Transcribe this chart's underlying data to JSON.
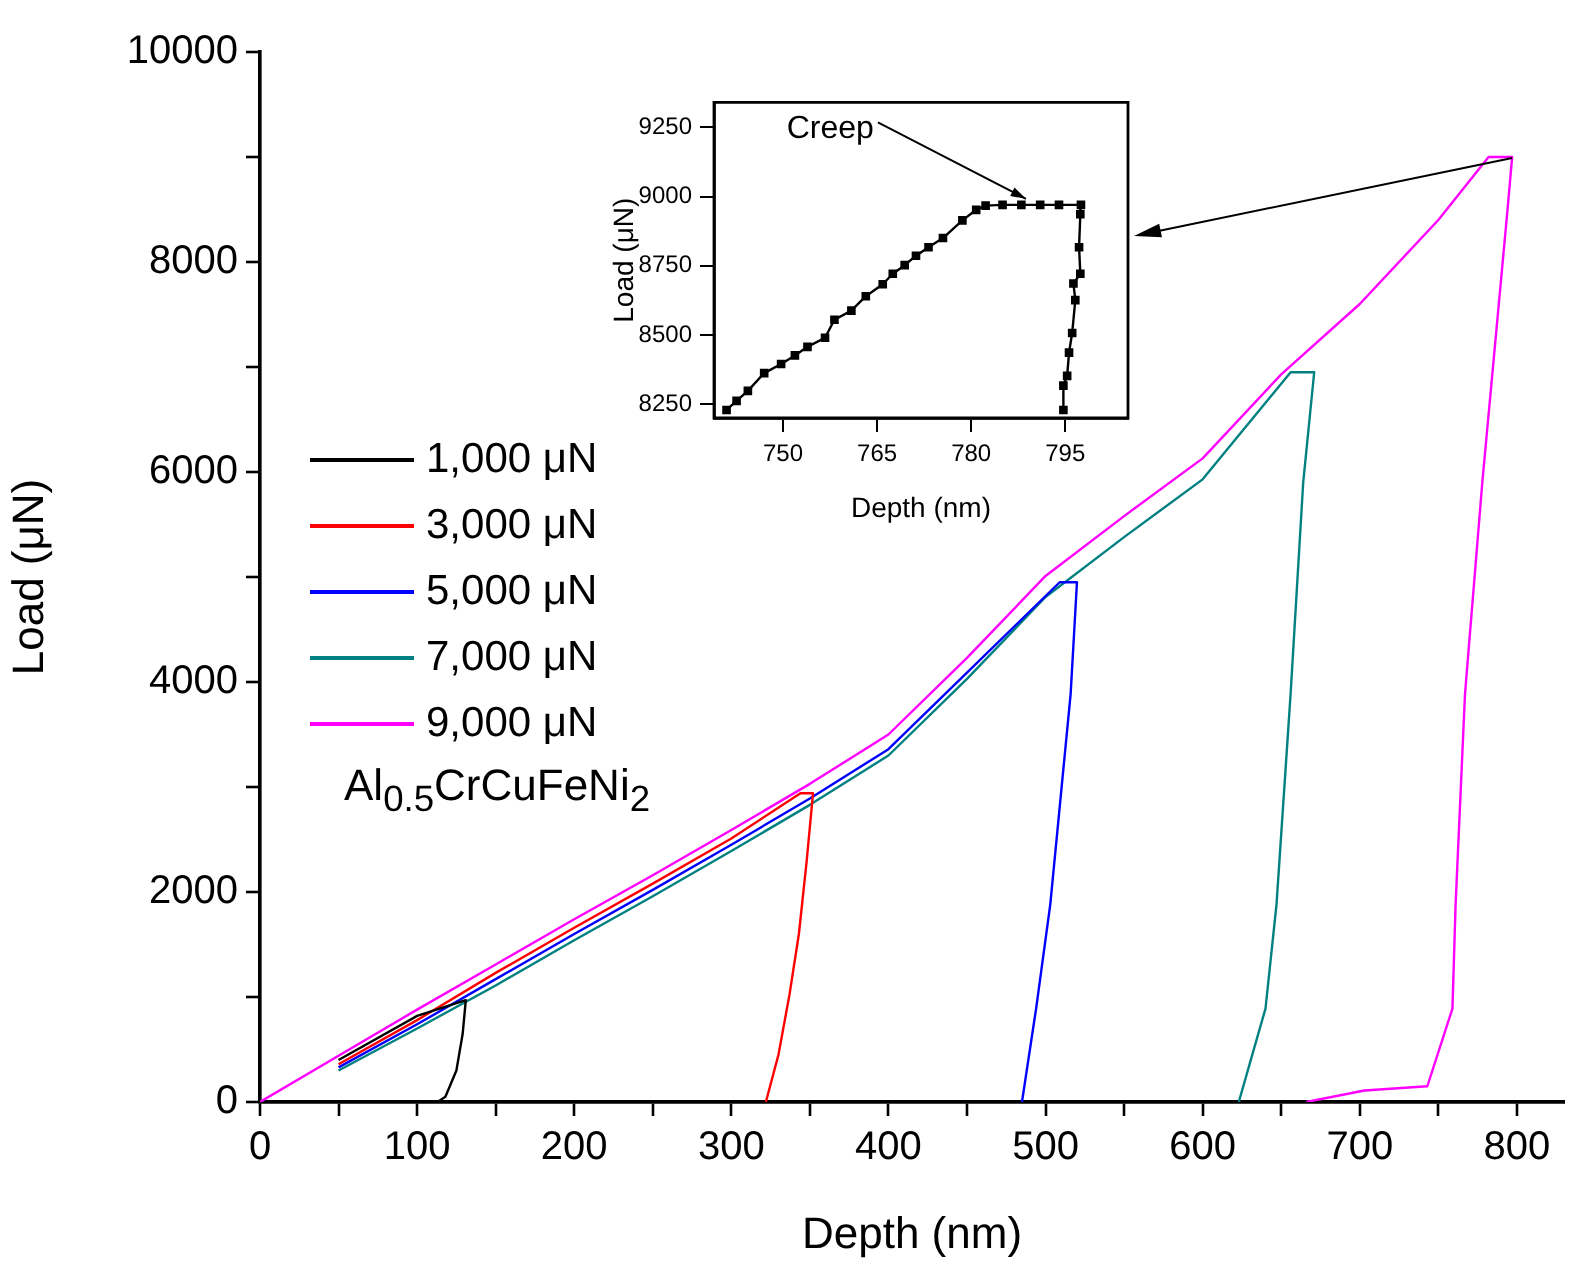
{
  "chart_data": [
    {
      "type": "line",
      "xlabel": "Depth (nm)",
      "ylabel": "Load (μN)",
      "xlim": [
        0,
        830
      ],
      "ylim": [
        0,
        10000
      ],
      "xticks": [
        0,
        {
          "value": 50,
          "label": null
        },
        100,
        {
          "value": 150,
          "label": null
        },
        200,
        {
          "value": 250,
          "label": null
        },
        300,
        {
          "value": 350,
          "label": null
        },
        400,
        {
          "value": 450,
          "label": null
        },
        500,
        {
          "value": 550,
          "label": null
        },
        600,
        {
          "value": 650,
          "label": null
        },
        700,
        {
          "value": 750,
          "label": null
        },
        800
      ],
      "yticks": [
        0,
        {
          "value": 1000,
          "label": null
        },
        2000,
        {
          "value": 3000,
          "label": null
        },
        4000,
        {
          "value": 5000,
          "label": null
        },
        6000,
        {
          "value": 7000,
          "label": null
        },
        8000,
        {
          "value": 9000,
          "label": null
        },
        10000
      ],
      "grid": false,
      "legend": "left",
      "marker": "none",
      "line_style": "solid",
      "annotations": [
        "Al$_{0.5}$CrCuFeNi$_{2}$"
      ],
      "series": [
        {
          "name": "1,000 μN",
          "color": "#000000",
          "x": [
            50,
            100,
            131,
            129,
            125,
            118,
            113
          ],
          "values": [
            400,
            820,
            970,
            650,
            300,
            50,
            0
          ]
        },
        {
          "name": "3,000 μN",
          "color": "#ff0000",
          "x": [
            50,
            100,
            150,
            200,
            250,
            300,
            344,
            352,
            348,
            343,
            337,
            330,
            322
          ],
          "values": [
            360,
            780,
            1230,
            1660,
            2080,
            2510,
            2940,
            2940,
            2300,
            1600,
            1020,
            450,
            0
          ]
        },
        {
          "name": "5,000 μN",
          "color": "#0000ff",
          "x": [
            50,
            100,
            150,
            200,
            250,
            300,
            350,
            400,
            450,
            509,
            520,
            516,
            503,
            494,
            485
          ],
          "values": [
            330,
            740,
            1170,
            1600,
            2020,
            2450,
            2890,
            3360,
            4090,
            4950,
            4950,
            3890,
            1880,
            890,
            0
          ]
        },
        {
          "name": "7,000 μN",
          "color": "#008080",
          "x": [
            50,
            100,
            150,
            200,
            250,
            300,
            350,
            400,
            450,
            500,
            550,
            600,
            656,
            671,
            664,
            656,
            647,
            640,
            623
          ],
          "values": [
            300,
            700,
            1110,
            1540,
            1960,
            2390,
            2830,
            3300,
            4030,
            4810,
            5380,
            5930,
            6950,
            6950,
            5900,
            3890,
            1880,
            890,
            0
          ]
        },
        {
          "name": "9,000 μN",
          "color": "#ff00ff",
          "x": [
            0,
            50,
            100,
            150,
            200,
            250,
            300,
            350,
            400,
            450,
            500,
            550,
            600,
            650,
            700,
            750,
            782,
            797,
            794,
            778,
            767,
            761,
            759,
            743,
            703,
            666
          ],
          "values": [
            0,
            440,
            880,
            1310,
            1740,
            2160,
            2590,
            3030,
            3500,
            4230,
            5010,
            5580,
            6130,
            6930,
            7600,
            8400,
            9000,
            9000,
            8490,
            5900,
            3890,
            1880,
            890,
            150,
            110,
            0
          ]
        }
      ]
    },
    {
      "type": "line",
      "xlabel": "Depth (nm)",
      "ylabel": "Load (μN)",
      "xlim": [
        739,
        805
      ],
      "ylim": [
        8200,
        9340
      ],
      "xticks": [
        750,
        765,
        780,
        795
      ],
      "yticks": [
        8250,
        8500,
        8750,
        9000,
        9250
      ],
      "grid": false,
      "marker": "square",
      "line_style": "solid",
      "annotations": [
        {
          "text": "Creep",
          "x": 790,
          "y": 8970
        }
      ],
      "series": [
        {
          "color": "#000000",
          "x": [
            741.0,
            742.6,
            744.4,
            747.0,
            749.7,
            751.9,
            753.9,
            756.7,
            758.2,
            760.9,
            763.2,
            765.9,
            767.5,
            769.4,
            771.2,
            773.2,
            775.5,
            778.6,
            780.8,
            782.3,
            785,
            788,
            791,
            794,
            797.5,
            797.4,
            797.2,
            797.4,
            796.3,
            796.6,
            796.1,
            795.6,
            795.3,
            794.7,
            794.7
          ],
          "values": [
            8229,
            8262,
            8298,
            8362,
            8395,
            8426,
            8457,
            8490,
            8555,
            8588,
            8640,
            8683,
            8721,
            8752,
            8786,
            8817,
            8850,
            8914,
            8952,
            8967,
            8970,
            8970,
            8970,
            8970,
            8970,
            8936,
            8817,
            8721,
            8686,
            8626,
            8507,
            8436,
            8352,
            8317,
            8229
          ]
        }
      ]
    }
  ]
}
